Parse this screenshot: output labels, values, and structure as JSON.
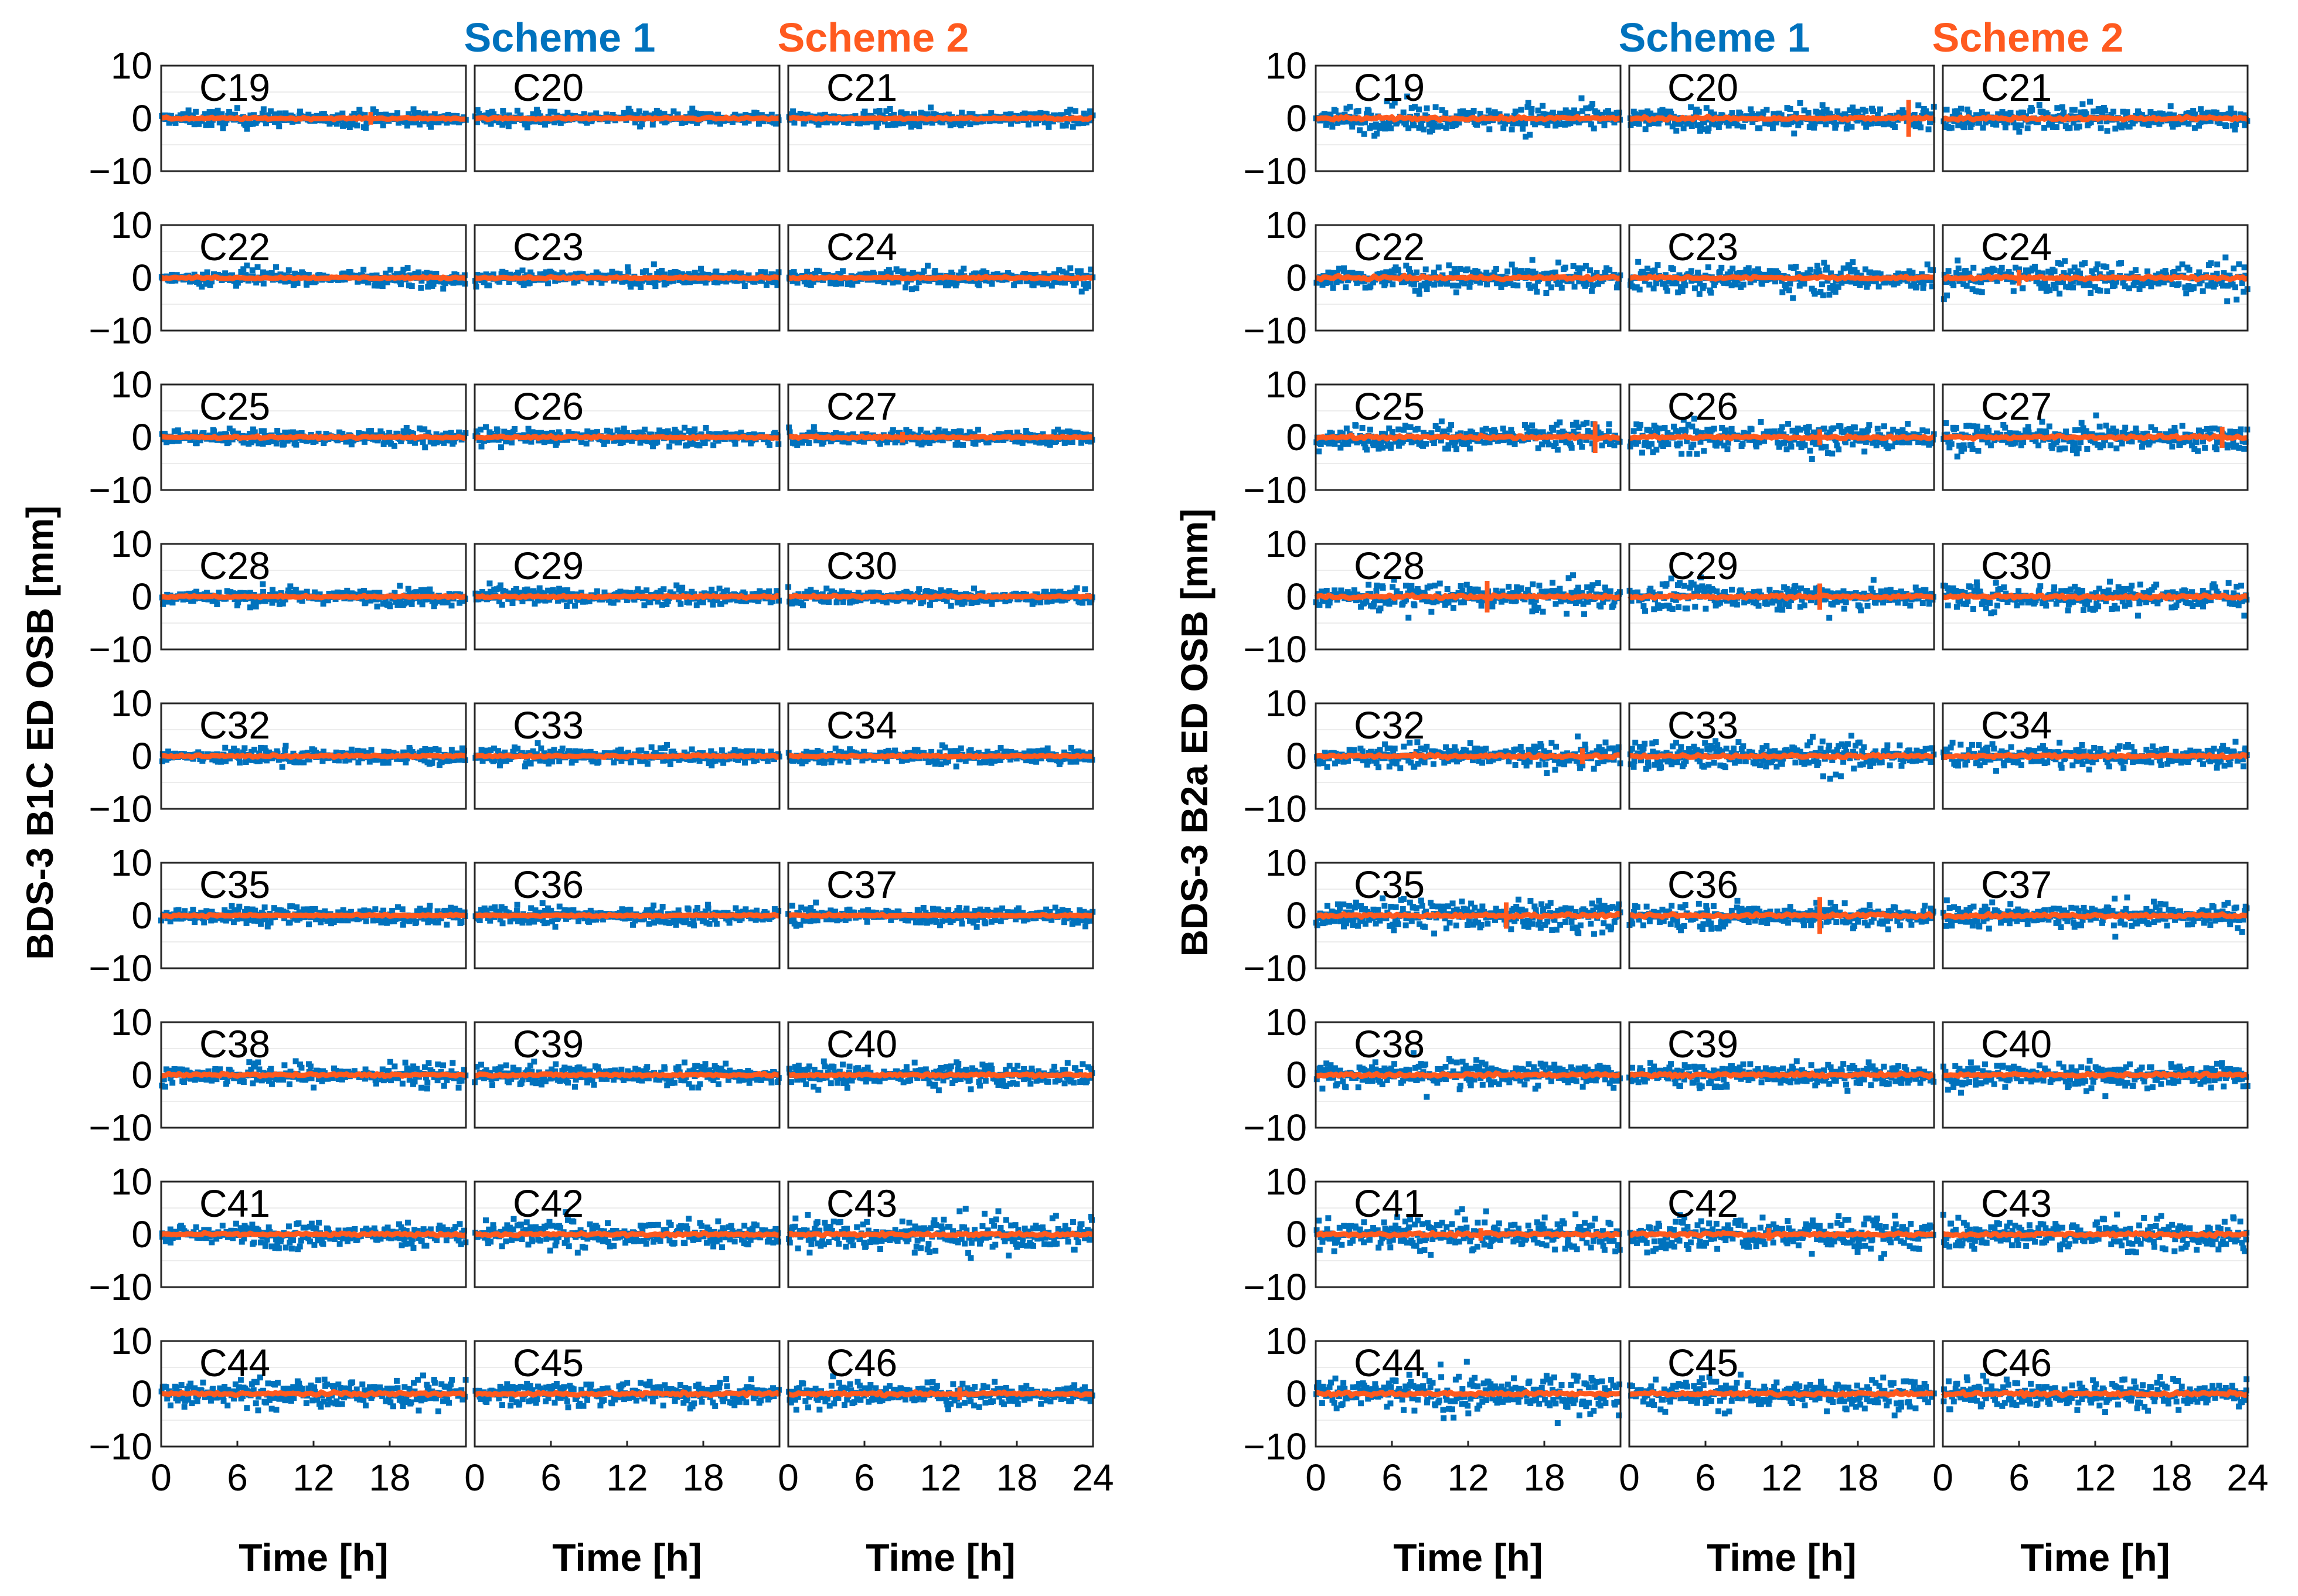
{
  "chart_data": [
    {
      "type": "scatter",
      "title": "BDS-3 B1C ED OSB",
      "ylabel": "BDS-3 B1C ED OSB [mm]",
      "xlabel": "Time [h]",
      "xlim": [
        0,
        24
      ],
      "ylim": [
        -10,
        10
      ],
      "xticks": [
        0,
        6,
        12,
        18
      ],
      "last_xticks": [
        0,
        6,
        12,
        18,
        24
      ],
      "yticks": [
        10,
        0,
        -10
      ],
      "grid": "horizontal",
      "legend": [
        {
          "name": "Scheme 1",
          "color": "#0072BD"
        },
        {
          "name": "Scheme 2",
          "color": "#FF5A1F"
        }
      ],
      "panels": [
        {
          "label": "C19",
          "scheme1_spread_mm": 1.3,
          "scheme2_spread_mm": 0.2,
          "scheme2_spike": {
            "t": 16.5,
            "mm": 1.2
          }
        },
        {
          "label": "C20",
          "scheme1_spread_mm": 1.2,
          "scheme2_spread_mm": 0.2
        },
        {
          "label": "C21",
          "scheme1_spread_mm": 1.2,
          "scheme2_spread_mm": 0.2
        },
        {
          "label": "C22",
          "scheme1_spread_mm": 1.3,
          "scheme2_spread_mm": 0.2
        },
        {
          "label": "C23",
          "scheme1_spread_mm": 1.3,
          "scheme2_spread_mm": 0.2
        },
        {
          "label": "C24",
          "scheme1_spread_mm": 1.5,
          "scheme2_spread_mm": 0.2
        },
        {
          "label": "C25",
          "scheme1_spread_mm": 1.3,
          "scheme2_spread_mm": 0.2
        },
        {
          "label": "C26",
          "scheme1_spread_mm": 1.4,
          "scheme2_spread_mm": 0.2
        },
        {
          "label": "C27",
          "scheme1_spread_mm": 1.3,
          "scheme2_spread_mm": 0.2,
          "scheme2_spike": {
            "t": 9,
            "mm": 1.0
          }
        },
        {
          "label": "C28",
          "scheme1_spread_mm": 1.3,
          "scheme2_spread_mm": 0.2
        },
        {
          "label": "C29",
          "scheme1_spread_mm": 1.4,
          "scheme2_spread_mm": 0.2
        },
        {
          "label": "C30",
          "scheme1_spread_mm": 1.3,
          "scheme2_spread_mm": 0.2
        },
        {
          "label": "C32",
          "scheme1_spread_mm": 1.3,
          "scheme2_spread_mm": 0.2
        },
        {
          "label": "C33",
          "scheme1_spread_mm": 1.3,
          "scheme2_spread_mm": 0.2
        },
        {
          "label": "C34",
          "scheme1_spread_mm": 1.3,
          "scheme2_spread_mm": 0.2
        },
        {
          "label": "C35",
          "scheme1_spread_mm": 1.4,
          "scheme2_spread_mm": 0.2
        },
        {
          "label": "C36",
          "scheme1_spread_mm": 1.4,
          "scheme2_spread_mm": 0.2
        },
        {
          "label": "C37",
          "scheme1_spread_mm": 1.4,
          "scheme2_spread_mm": 0.2
        },
        {
          "label": "C38",
          "scheme1_spread_mm": 1.8,
          "scheme2_spread_mm": 0.25
        },
        {
          "label": "C39",
          "scheme1_spread_mm": 1.7,
          "scheme2_spread_mm": 0.25
        },
        {
          "label": "C40",
          "scheme1_spread_mm": 2.0,
          "scheme2_spread_mm": 0.25
        },
        {
          "label": "C41",
          "scheme1_spread_mm": 1.9,
          "scheme2_spread_mm": 0.25
        },
        {
          "label": "C42",
          "scheme1_spread_mm": 2.3,
          "scheme2_spread_mm": 0.25
        },
        {
          "label": "C43",
          "scheme1_spread_mm": 3.0,
          "scheme2_spread_mm": 0.3
        },
        {
          "label": "C44",
          "scheme1_spread_mm": 2.4,
          "scheme2_spread_mm": 0.3
        },
        {
          "label": "C45",
          "scheme1_spread_mm": 2.0,
          "scheme2_spread_mm": 0.3
        },
        {
          "label": "C46",
          "scheme1_spread_mm": 2.0,
          "scheme2_spread_mm": 0.3,
          "scheme2_spike": {
            "t": 13.5,
            "mm": 1.2
          }
        }
      ]
    },
    {
      "type": "scatter",
      "title": "BDS-3 B2a ED OSB",
      "ylabel": "BDS-3 B2a ED OSB [mm]",
      "xlabel": "Time [h]",
      "xlim": [
        0,
        24
      ],
      "ylim": [
        -10,
        10
      ],
      "xticks": [
        0,
        6,
        12,
        18
      ],
      "last_xticks": [
        0,
        6,
        12,
        18,
        24
      ],
      "yticks": [
        10,
        0,
        -10
      ],
      "grid": "horizontal",
      "legend": [
        {
          "name": "Scheme 1",
          "color": "#0072BD"
        },
        {
          "name": "Scheme 2",
          "color": "#FF5A1F"
        }
      ],
      "panels": [
        {
          "label": "C19",
          "scheme1_spread_mm": 2.2,
          "scheme2_spread_mm": 0.3
        },
        {
          "label": "C20",
          "scheme1_spread_mm": 2.2,
          "scheme2_spread_mm": 0.3,
          "scheme2_spike": {
            "t": 22,
            "mm": 3.5
          }
        },
        {
          "label": "C21",
          "scheme1_spread_mm": 2.0,
          "scheme2_spread_mm": 0.3
        },
        {
          "label": "C22",
          "scheme1_spread_mm": 2.0,
          "scheme2_spread_mm": 0.3
        },
        {
          "label": "C23",
          "scheme1_spread_mm": 2.3,
          "scheme2_spread_mm": 0.3
        },
        {
          "label": "C24",
          "scheme1_spread_mm": 2.6,
          "scheme2_spread_mm": 0.3,
          "scheme2_spike": {
            "t": 6,
            "mm": 1.5
          }
        },
        {
          "label": "C25",
          "scheme1_spread_mm": 2.2,
          "scheme2_spread_mm": 0.3,
          "scheme2_spike": {
            "t": 22,
            "mm": 3.0
          }
        },
        {
          "label": "C26",
          "scheme1_spread_mm": 2.4,
          "scheme2_spread_mm": 0.3,
          "scheme2_spike": {
            "t": 15,
            "mm": 1.5
          }
        },
        {
          "label": "C27",
          "scheme1_spread_mm": 2.2,
          "scheme2_spread_mm": 0.3,
          "scheme2_spike": {
            "t": 22,
            "mm": 2.0
          }
        },
        {
          "label": "C28",
          "scheme1_spread_mm": 2.3,
          "scheme2_spread_mm": 0.3,
          "scheme2_spike": {
            "t": 13.5,
            "mm": 3.0
          }
        },
        {
          "label": "C29",
          "scheme1_spread_mm": 2.2,
          "scheme2_spread_mm": 0.3,
          "scheme2_spike": {
            "t": 15,
            "mm": 2.5
          }
        },
        {
          "label": "C30",
          "scheme1_spread_mm": 2.4,
          "scheme2_spread_mm": 0.3
        },
        {
          "label": "C32",
          "scheme1_spread_mm": 2.0,
          "scheme2_spread_mm": 0.3,
          "scheme2_spike": {
            "t": 21,
            "mm": 1.5
          }
        },
        {
          "label": "C33",
          "scheme1_spread_mm": 2.6,
          "scheme2_spread_mm": 0.3
        },
        {
          "label": "C34",
          "scheme1_spread_mm": 2.0,
          "scheme2_spread_mm": 0.3
        },
        {
          "label": "C35",
          "scheme1_spread_mm": 2.4,
          "scheme2_spread_mm": 0.3,
          "scheme2_spike": {
            "t": 15,
            "mm": 2.5
          }
        },
        {
          "label": "C36",
          "scheme1_spread_mm": 2.0,
          "scheme2_spread_mm": 0.3,
          "scheme2_spike": {
            "t": 15,
            "mm": 3.5
          }
        },
        {
          "label": "C37",
          "scheme1_spread_mm": 2.2,
          "scheme2_spread_mm": 0.3
        },
        {
          "label": "C38",
          "scheme1_spread_mm": 2.4,
          "scheme2_spread_mm": 0.3
        },
        {
          "label": "C39",
          "scheme1_spread_mm": 2.0,
          "scheme2_spread_mm": 0.3
        },
        {
          "label": "C40",
          "scheme1_spread_mm": 2.2,
          "scheme2_spread_mm": 0.3
        },
        {
          "label": "C41",
          "scheme1_spread_mm": 2.8,
          "scheme2_spread_mm": 0.3,
          "scheme2_spike": {
            "t": 13,
            "mm": 1.2
          }
        },
        {
          "label": "C42",
          "scheme1_spread_mm": 3.0,
          "scheme2_spread_mm": 0.3,
          "scheme2_spike": {
            "t": 11,
            "mm": 1.2
          }
        },
        {
          "label": "C43",
          "scheme1_spread_mm": 2.8,
          "scheme2_spread_mm": 0.3
        },
        {
          "label": "C44",
          "scheme1_spread_mm": 3.2,
          "scheme2_spread_mm": 0.35
        },
        {
          "label": "C45",
          "scheme1_spread_mm": 2.6,
          "scheme2_spread_mm": 0.3
        },
        {
          "label": "C46",
          "scheme1_spread_mm": 2.6,
          "scheme2_spread_mm": 0.3
        }
      ]
    }
  ]
}
